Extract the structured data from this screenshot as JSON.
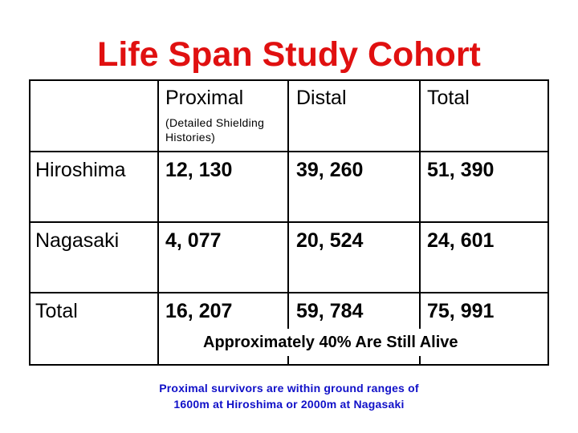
{
  "title": "Life Span Study Cohort",
  "table": {
    "headers": [
      "",
      "Proximal",
      "Distal",
      "Total"
    ],
    "proximal_note": [
      "(Detailed Shielding",
      "Histories)"
    ],
    "rows": [
      {
        "label": "Hiroshima",
        "proximal": "12, 130",
        "distal": "39, 260",
        "total": "51, 390"
      },
      {
        "label": "Nagasaki",
        "proximal": "4, 077",
        "distal": "20, 524",
        "total": "24, 601"
      },
      {
        "label": "Total",
        "proximal": "16, 207",
        "distal": "59, 784",
        "total": "75, 991"
      }
    ]
  },
  "alive_note": "Approximately 40% Are Still Alive",
  "footnote": {
    "line1": "Proximal survivors are within ground ranges of",
    "line2": "1600m at Hiroshima or 2000m at Nagasaki"
  },
  "colors": {
    "title": "#e01010",
    "footnote": "#1010c8"
  }
}
